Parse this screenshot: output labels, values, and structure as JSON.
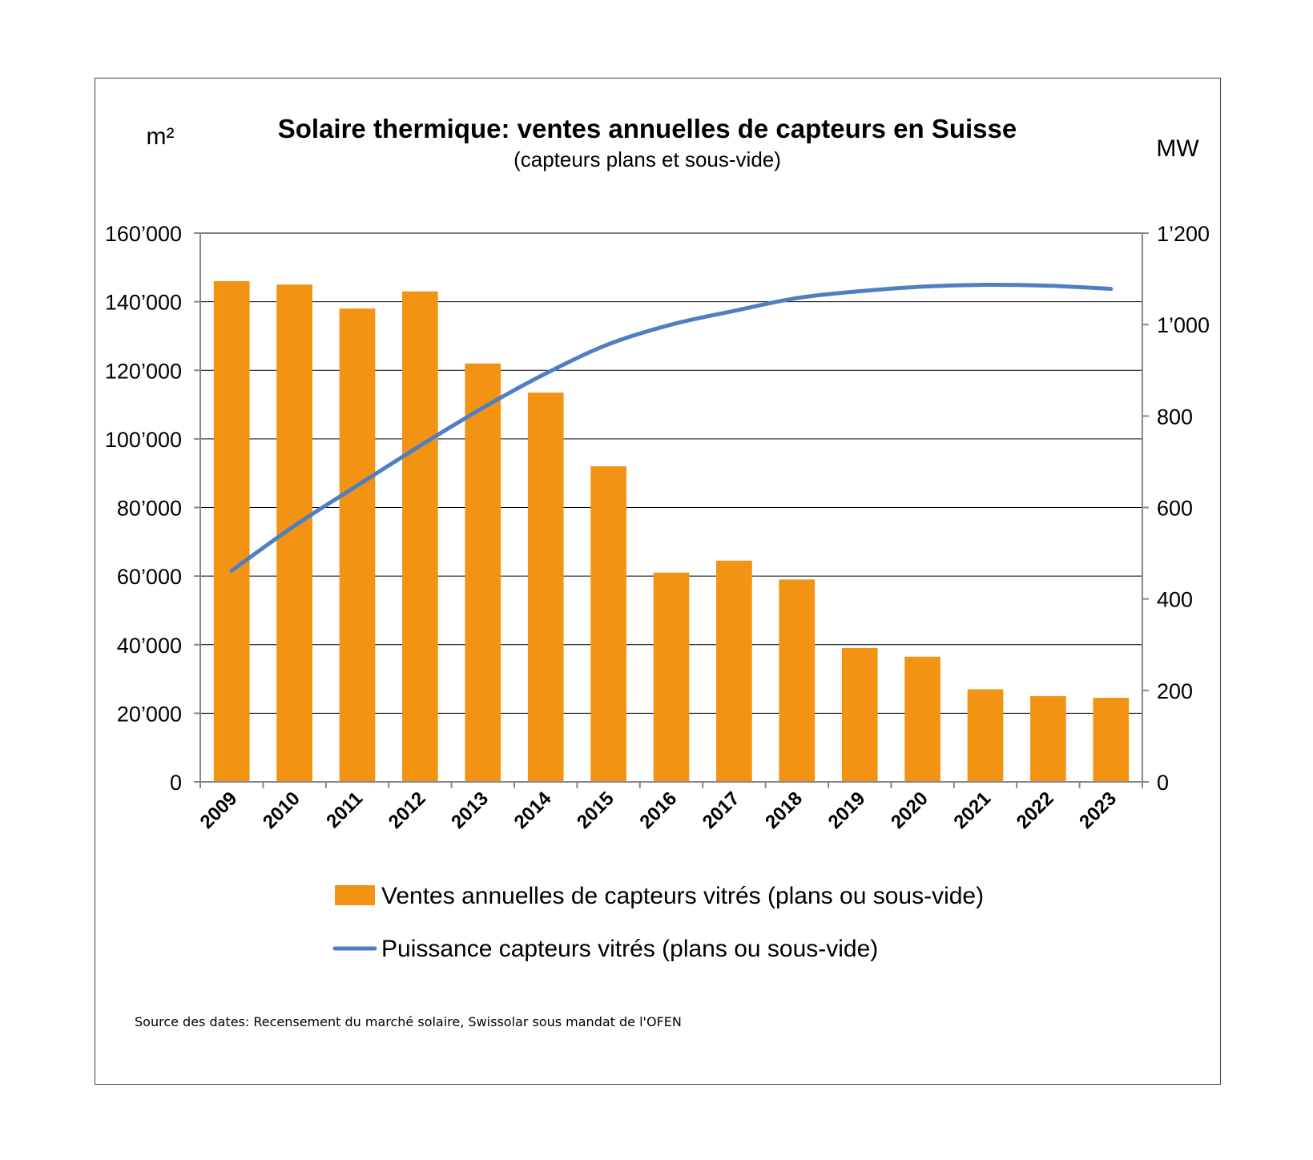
{
  "chart_data": {
    "type": "bar",
    "title": "Solaire thermique: ventes annuelles de capteurs en Suisse",
    "subtitle": "(capteurs plans et sous-vide)",
    "ylabel_left": "m²",
    "ylabel_right": "MW",
    "ylim_left": [
      0,
      160000
    ],
    "ylim_right": [
      0,
      1200
    ],
    "yticks_left": [
      "0",
      "20’000",
      "40’000",
      "60’000",
      "80’000",
      "100’000",
      "120’000",
      "140’000",
      "160’000"
    ],
    "yticks_right": [
      "0",
      "200",
      "400",
      "600",
      "800",
      "1’000",
      "1’200"
    ],
    "categories": [
      "2009",
      "2010",
      "2011",
      "2012",
      "2013",
      "2014",
      "2015",
      "2016",
      "2017",
      "2018",
      "2019",
      "2020",
      "2021",
      "2022",
      "2023"
    ],
    "series": [
      {
        "name": "Ventes annuelles de capteurs vitrés (plans ou sous-vide)",
        "type": "bar",
        "axis": "left",
        "color": "#F39314",
        "values": [
          146000,
          145000,
          138000,
          143000,
          122000,
          113500,
          92000,
          61000,
          64500,
          59000,
          39000,
          36500,
          27000,
          25000,
          24500
        ]
      },
      {
        "name": "Puissance capteurs vitrés (plans ou sous-vide)",
        "type": "line",
        "axis": "right",
        "color": "#4F7FC0",
        "values": [
          462,
          560,
          648,
          735,
          818,
          893,
          957,
          1000,
          1030,
          1058,
          1073,
          1083,
          1087,
          1085,
          1078
        ]
      }
    ],
    "grid": true,
    "legend_position": "bottom",
    "source": "Source des dates: Recensement du marché solaire, Swissolar sous mandat de l'OFEN"
  }
}
